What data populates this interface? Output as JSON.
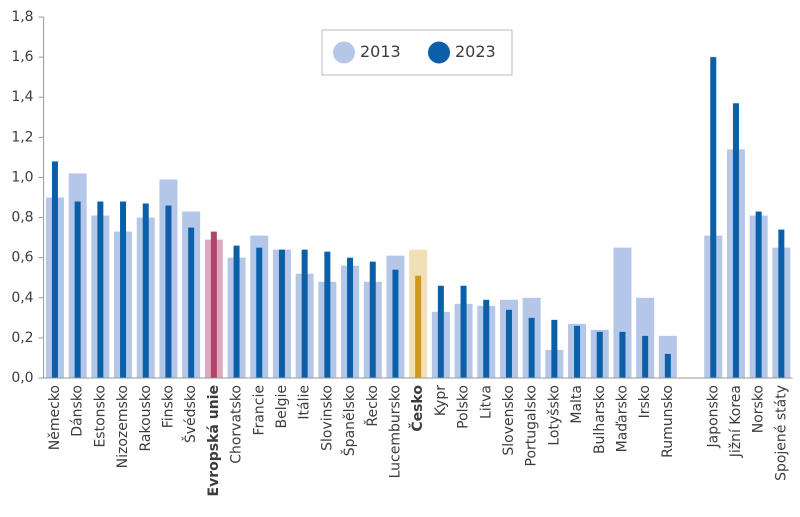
{
  "chart_data": {
    "type": "bar",
    "categories": [
      "Německo",
      "Dánsko",
      "Estonsko",
      "Nizozemsko",
      "Rakousko",
      "Finsko",
      "Švédsko",
      "Evropská unie",
      "Chorvatsko",
      "Francie",
      "Belgie",
      "Itálie",
      "Slovinsko",
      "Španělsko",
      "Řecko",
      "Lucembursko",
      "Česko",
      "Kypr",
      "Polsko",
      "Litva",
      "Slovensko",
      "Portugalsko",
      "Lotyšsko",
      "Malta",
      "Bulharsko",
      "Maďarsko",
      "Irsko",
      "Rumunsko",
      null,
      "Japonsko",
      "Jižní Korea",
      "Norsko",
      "Spojené státy"
    ],
    "series": [
      {
        "name": "2013",
        "color": "#b4c7e8",
        "values": [
          0.9,
          1.02,
          0.81,
          0.73,
          0.8,
          0.99,
          0.83,
          0.69,
          0.6,
          0.71,
          0.64,
          0.52,
          0.48,
          0.56,
          0.48,
          0.61,
          0.64,
          0.33,
          0.37,
          0.36,
          0.39,
          0.4,
          0.14,
          0.27,
          0.24,
          0.65,
          0.4,
          0.21,
          null,
          0.71,
          1.14,
          0.81,
          0.65
        ]
      },
      {
        "name": "2023",
        "color": "#0b5fa8",
        "values": [
          1.08,
          0.88,
          0.88,
          0.88,
          0.87,
          0.86,
          0.75,
          0.73,
          0.66,
          0.65,
          0.64,
          0.64,
          0.63,
          0.6,
          0.58,
          0.54,
          0.51,
          0.46,
          0.46,
          0.39,
          0.34,
          0.3,
          0.29,
          0.26,
          0.23,
          0.23,
          0.21,
          0.12,
          null,
          1.6,
          1.37,
          0.83,
          0.74
        ]
      }
    ],
    "highlights": [
      {
        "index": 7,
        "colors": [
          "#dcaabd",
          "#b3416c"
        ]
      },
      {
        "index": 16,
        "colors": [
          "#f1dfb5",
          "#cf9a1f"
        ]
      }
    ],
    "ylim": [
      0,
      1.8
    ],
    "yticks": [
      {
        "value": 0,
        "label": "0,0"
      },
      {
        "value": 0.2,
        "label": "0,2"
      },
      {
        "value": 0.4,
        "label": "0,4"
      },
      {
        "value": 0.6,
        "label": "0,6"
      },
      {
        "value": 0.8,
        "label": "0,8"
      },
      {
        "value": 1.0,
        "label": "1,0"
      },
      {
        "value": 1.2,
        "label": "1,2"
      },
      {
        "value": 1.4,
        "label": "1,4"
      },
      {
        "value": 1.6,
        "label": "1,6"
      },
      {
        "value": 1.8,
        "label": "1,8"
      }
    ],
    "grid": false,
    "legend": "top-center"
  }
}
